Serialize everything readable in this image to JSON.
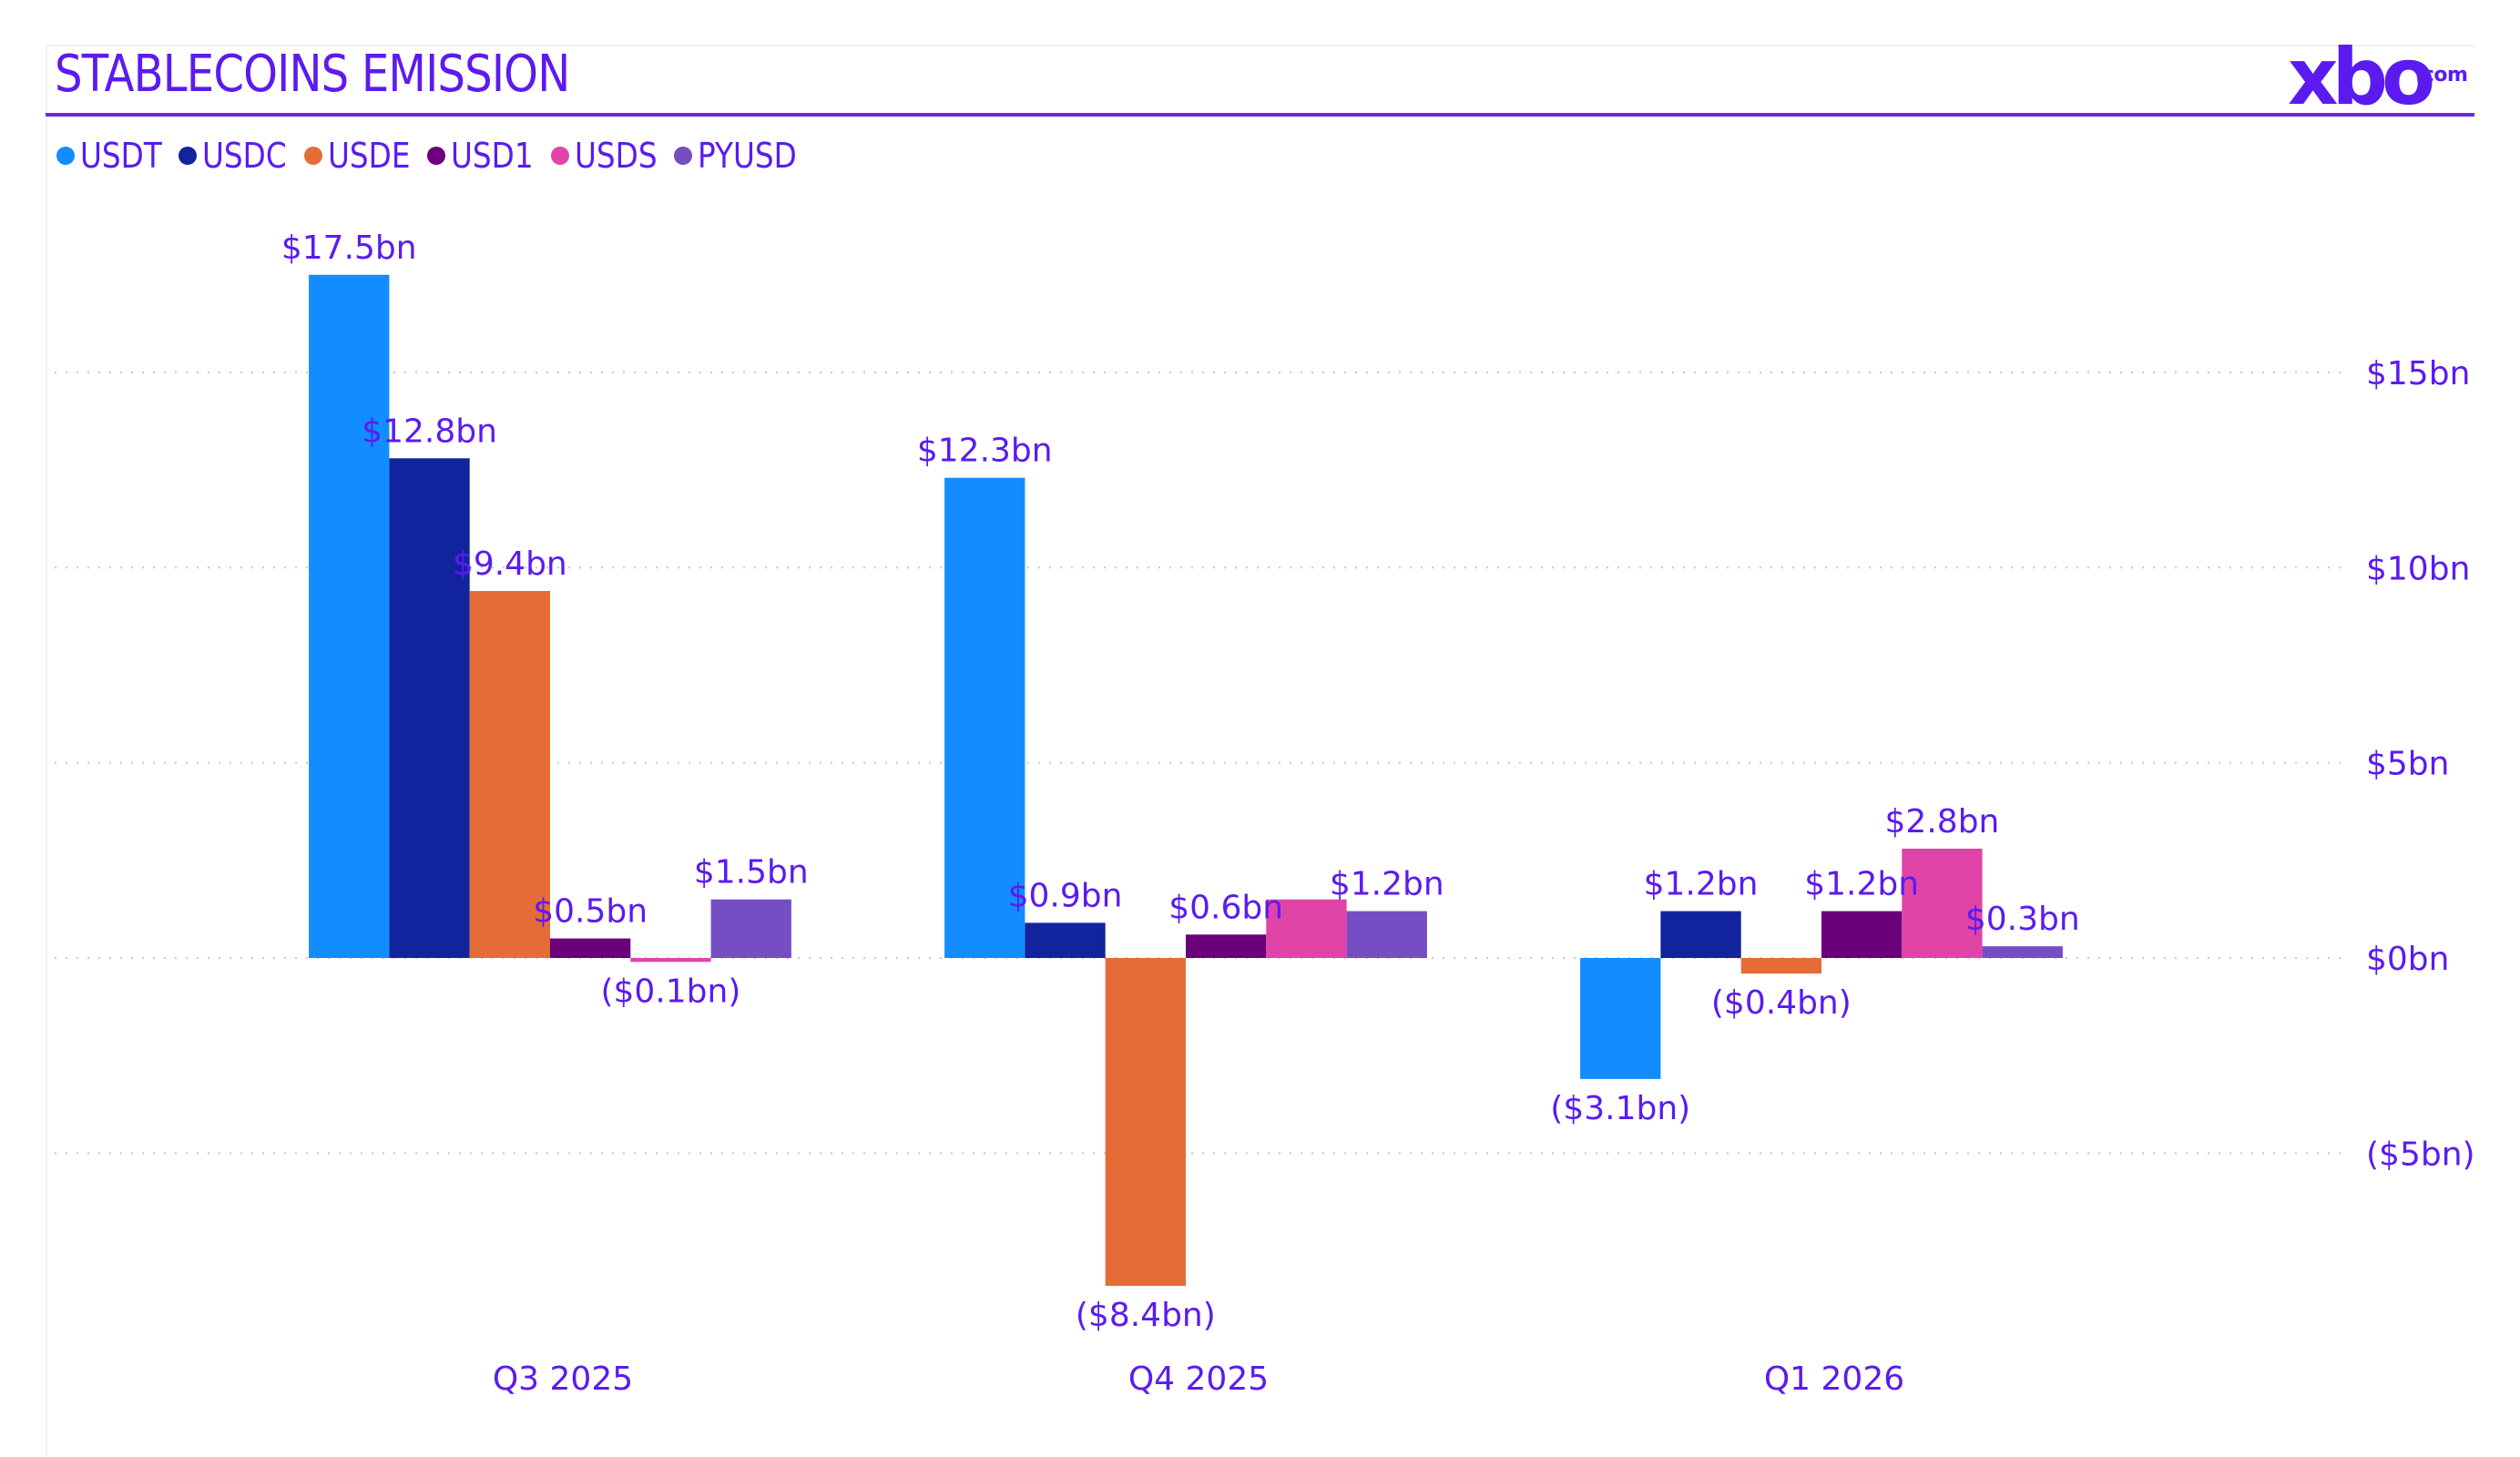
{
  "header": {
    "title": "STABLECOINS EMISSION",
    "logo_main": "xbo",
    "logo_suffix": ".com",
    "accent_color": "#5b1bf0"
  },
  "legend": [
    {
      "label": "USDT",
      "color": "#118dff"
    },
    {
      "label": "USDC",
      "color": "#12239e"
    },
    {
      "label": "USDE",
      "color": "#e66c37"
    },
    {
      "label": "USD1",
      "color": "#6b007b"
    },
    {
      "label": "USDS",
      "color": "#e044a7"
    },
    {
      "label": "PYUSD",
      "color": "#744ec2"
    }
  ],
  "chart_data": {
    "type": "bar",
    "title": "STABLECOINS EMISSION",
    "xlabel": "",
    "ylabel": "",
    "categories": [
      "Q3 2025",
      "Q4 2025",
      "Q1 2026"
    ],
    "series": [
      {
        "name": "USDT",
        "color": "#118dff",
        "values": [
          17.5,
          12.3,
          -3.1
        ],
        "labels": [
          "$17.5bn",
          "$12.3bn",
          "($3.1bn)"
        ]
      },
      {
        "name": "USDC",
        "color": "#12239e",
        "values": [
          12.8,
          0.9,
          1.2
        ],
        "labels": [
          "$12.8bn",
          "$0.9bn",
          "$1.2bn"
        ]
      },
      {
        "name": "USDE",
        "color": "#e66c37",
        "values": [
          9.4,
          -8.4,
          -0.4
        ],
        "labels": [
          "$9.4bn",
          "($8.4bn)",
          "($0.4bn)"
        ]
      },
      {
        "name": "USD1",
        "color": "#6b007b",
        "values": [
          0.5,
          0.6,
          1.2
        ],
        "labels": [
          "$0.5bn",
          "$0.6bn",
          "$1.2bn"
        ]
      },
      {
        "name": "USDS",
        "color": "#e044a7",
        "values": [
          -0.1,
          1.5,
          2.8
        ],
        "labels": [
          "($0.1bn)",
          "",
          "$2.8bn"
        ]
      },
      {
        "name": "PYUSD",
        "color": "#744ec2",
        "values": [
          1.5,
          1.2,
          0.3
        ],
        "labels": [
          "$1.5bn",
          "$1.2bn",
          "$0.3bn"
        ]
      }
    ],
    "y_axis": {
      "position": "right",
      "ticks": [
        15,
        10,
        5,
        0,
        -5
      ],
      "tick_labels": [
        "$15bn",
        "$10bn",
        "$5bn",
        "$0bn",
        "($5bn)"
      ],
      "range": [
        -8.4,
        17.5
      ]
    },
    "grid": true,
    "grid_style": "dotted",
    "legend_position": "top-left"
  }
}
